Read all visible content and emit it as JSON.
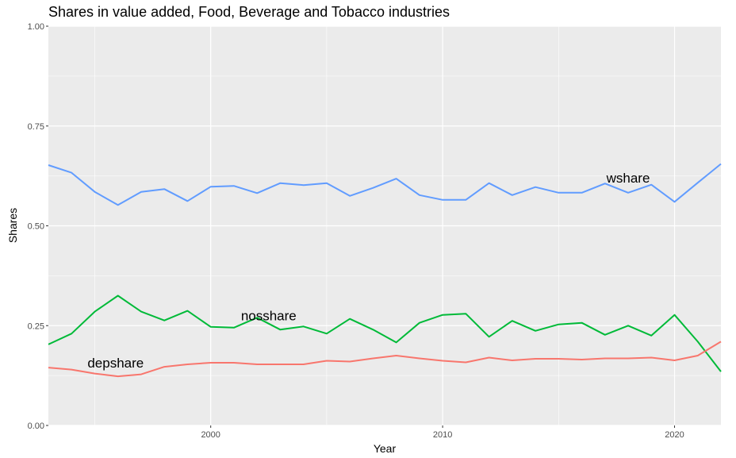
{
  "chart_data": {
    "type": "line",
    "title": "Shares in value added, Food, Beverage and Tobacco industries",
    "xlabel": "Year",
    "ylabel": "Shares",
    "xlim": [
      1993,
      2022
    ],
    "ylim": [
      0,
      1
    ],
    "x_ticks": [
      2000,
      2010,
      2020
    ],
    "x_tick_labels": [
      "2000",
      "2010",
      "2020"
    ],
    "y_ticks": [
      0,
      0.25,
      0.5,
      0.75,
      1.0
    ],
    "y_tick_labels": [
      "0.00",
      "0.25",
      "0.50",
      "0.75",
      "1.00"
    ],
    "grid": true,
    "x": [
      1993,
      1994,
      1995,
      1996,
      1997,
      1998,
      1999,
      2000,
      2001,
      2002,
      2003,
      2004,
      2005,
      2006,
      2007,
      2008,
      2009,
      2010,
      2011,
      2012,
      2013,
      2014,
      2015,
      2016,
      2017,
      2018,
      2019,
      2020,
      2021,
      2022
    ],
    "series": [
      {
        "name": "wshare",
        "color": "#619CFF",
        "label_at": [
          2018,
          0.62
        ],
        "values": [
          0.652,
          0.633,
          0.585,
          0.552,
          0.585,
          0.592,
          0.562,
          0.598,
          0.6,
          0.582,
          0.607,
          0.602,
          0.607,
          0.575,
          0.595,
          0.618,
          0.577,
          0.565,
          0.565,
          0.607,
          0.577,
          0.597,
          0.583,
          0.583,
          0.606,
          0.583,
          0.603,
          0.56,
          0.608,
          0.655
        ]
      },
      {
        "name": "nosshare",
        "color": "#00BA38",
        "label_at": [
          2002.5,
          0.275
        ],
        "values": [
          0.203,
          0.23,
          0.285,
          0.325,
          0.285,
          0.263,
          0.287,
          0.247,
          0.245,
          0.27,
          0.24,
          0.248,
          0.23,
          0.267,
          0.24,
          0.208,
          0.257,
          0.277,
          0.28,
          0.222,
          0.262,
          0.237,
          0.253,
          0.257,
          0.227,
          0.25,
          0.225,
          0.277,
          0.21,
          0.135
        ]
      },
      {
        "name": "depshare",
        "color": "#F8766D",
        "label_at": [
          1995.9,
          0.157
        ],
        "values": [
          0.145,
          0.14,
          0.13,
          0.123,
          0.128,
          0.147,
          0.153,
          0.157,
          0.157,
          0.153,
          0.153,
          0.153,
          0.162,
          0.16,
          0.168,
          0.175,
          0.168,
          0.162,
          0.158,
          0.17,
          0.163,
          0.167,
          0.167,
          0.165,
          0.168,
          0.168,
          0.17,
          0.163,
          0.175,
          0.21
        ]
      }
    ]
  }
}
